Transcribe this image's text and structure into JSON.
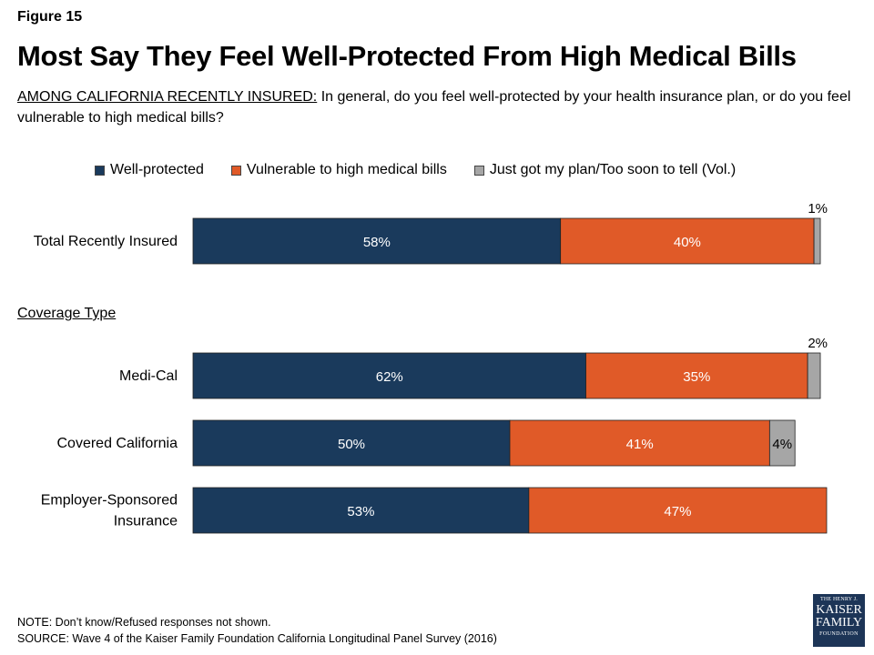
{
  "figure_label": "Figure 15",
  "title": "Most Say They Feel Well-Protected From High Medical Bills",
  "subtitle": {
    "lead": "AMONG CALIFORNIA RECENTLY INSURED:",
    "text": " In general, do you feel well-protected by your health insurance plan, or do you feel vulnerable to high medical bills?"
  },
  "section_label": "Coverage Type",
  "note": "NOTE: Don’t know/Refused responses not shown.",
  "source": "SOURCE: Wave 4 of the Kaiser Family Foundation California Longitudinal Panel Survey (2016)",
  "logo": {
    "line1": "THE HENRY J.",
    "line2": "KAISER",
    "line3": "FAMILY",
    "line4": "FOUNDATION"
  },
  "chart_data": {
    "type": "bar",
    "orientation": "horizontal",
    "stacked": true,
    "xlim": [
      0,
      100
    ],
    "unit": "%",
    "legend_position": "top",
    "categories": [
      "Total Recently Insured",
      "Medi-Cal",
      "Covered California",
      "Employer-Sponsored Insurance"
    ],
    "category_lines": [
      [
        "Total Recently Insured"
      ],
      [
        "Medi-Cal"
      ],
      [
        "Covered California"
      ],
      [
        "Employer-Sponsored",
        "Insurance"
      ]
    ],
    "series": [
      {
        "name": "Well-protected",
        "color": "#1a3a5c",
        "label_color": "#ffffff",
        "values": [
          58,
          62,
          50,
          53
        ]
      },
      {
        "name": "Vulnerable to high medical bills",
        "color": "#e05a28",
        "label_color": "#ffffff",
        "values": [
          40,
          35,
          41,
          47
        ]
      },
      {
        "name": "Just got my plan/Too soon to tell (Vol.)",
        "color": "#a6a6a6",
        "label_color": "#000000",
        "values": [
          1,
          2,
          4,
          null
        ]
      }
    ]
  }
}
